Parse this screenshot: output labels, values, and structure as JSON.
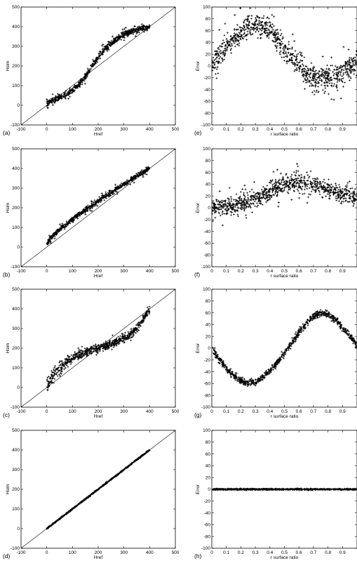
{
  "figure": {
    "panels": [
      {
        "letter": "(a)",
        "kind": "scatter_left",
        "xlabel": "Href",
        "ylabel": "Hsim"
      },
      {
        "letter": "(e)",
        "kind": "error_right",
        "xlabel": "r surface ratio",
        "ylabel": "Error"
      },
      {
        "letter": "(b)",
        "kind": "scatter_left",
        "xlabel": "Href",
        "ylabel": "Hsim"
      },
      {
        "letter": "(f)",
        "kind": "error_right",
        "xlabel": "r surface ratio",
        "ylabel": "Error"
      },
      {
        "letter": "(c)",
        "kind": "scatter_left",
        "xlabel": "Href",
        "ylabel": "Hsim"
      },
      {
        "letter": "(g)",
        "kind": "error_right",
        "xlabel": "r surface ratio",
        "ylabel": "Error"
      },
      {
        "letter": "(d)",
        "kind": "scatter_left",
        "xlabel": "Href",
        "ylabel": "Hsim"
      },
      {
        "letter": "(h)",
        "kind": "error_right",
        "xlabel": "r surface ratio",
        "ylabel": "Error"
      }
    ]
  },
  "chart_data": [
    {
      "type": "scatter",
      "panel": "(a)",
      "marker": "+",
      "color": "#000000",
      "xlabel": "Href",
      "ylabel": "Hsim",
      "xlim": [
        -100,
        500
      ],
      "ylim": [
        -100,
        500
      ],
      "xticks": [
        -100,
        0,
        100,
        200,
        300,
        400,
        500
      ],
      "yticks": [
        -100,
        0,
        100,
        200,
        300,
        400,
        500
      ],
      "reference_line": "y = x",
      "series": [
        {
          "x": [
            0,
            25,
            50,
            75,
            100,
            125,
            150,
            175,
            200,
            225,
            250,
            275,
            300,
            325,
            350,
            375,
            400
          ],
          "y": [
            10,
            25,
            38,
            55,
            75,
            105,
            145,
            195,
            245,
            285,
            315,
            340,
            360,
            375,
            385,
            392,
            400
          ],
          "spread": 14
        }
      ]
    },
    {
      "type": "scatter",
      "panel": "(e)",
      "marker": "+",
      "color": "#000000",
      "xlabel": "r surface ratio",
      "ylabel": "Error",
      "xlim": [
        0,
        1
      ],
      "ylim": [
        -100,
        100
      ],
      "xticks": [
        0,
        0.1,
        0.2,
        0.3,
        0.4,
        0.5,
        0.6,
        0.7,
        0.8,
        0.9
      ],
      "yticks": [
        -100,
        -80,
        -60,
        -40,
        -20,
        0,
        20,
        40,
        60,
        80,
        100
      ],
      "series": [
        {
          "x": [
            0,
            0.05,
            0.1,
            0.15,
            0.2,
            0.25,
            0.3,
            0.35,
            0.4,
            0.45,
            0.5,
            0.55,
            0.6,
            0.65,
            0.7,
            0.75,
            0.8,
            0.85,
            0.9,
            0.95,
            1.0
          ],
          "y": [
            0,
            18,
            33,
            46,
            57,
            65,
            68,
            66,
            58,
            46,
            30,
            14,
            0,
            -12,
            -20,
            -23,
            -22,
            -18,
            -10,
            -2,
            5
          ],
          "spread": 18
        }
      ]
    },
    {
      "type": "scatter",
      "panel": "(b)",
      "marker": "+",
      "color": "#000000",
      "xlabel": "Href",
      "ylabel": "Hsim",
      "xlim": [
        -100,
        500
      ],
      "ylim": [
        -100,
        500
      ],
      "xticks": [
        -100,
        0,
        100,
        200,
        300,
        400,
        500
      ],
      "yticks": [
        -100,
        0,
        100,
        200,
        300,
        400,
        500
      ],
      "reference_line": "y = x",
      "series": [
        {
          "x": [
            0,
            25,
            50,
            75,
            100,
            125,
            150,
            175,
            200,
            225,
            250,
            275,
            300,
            325,
            350,
            375,
            400
          ],
          "y": [
            20,
            60,
            90,
            115,
            140,
            165,
            190,
            210,
            235,
            255,
            275,
            300,
            320,
            340,
            360,
            380,
            400
          ],
          "spread": 12
        }
      ]
    },
    {
      "type": "scatter",
      "panel": "(f)",
      "marker": "+",
      "color": "#000000",
      "xlabel": "r surface ratio",
      "ylabel": "Error",
      "xlim": [
        0,
        1
      ],
      "ylim": [
        -100,
        100
      ],
      "xticks": [
        0,
        0.1,
        0.2,
        0.3,
        0.4,
        0.5,
        0.6,
        0.7,
        0.8,
        0.9
      ],
      "yticks": [
        -100,
        -80,
        -60,
        -40,
        -20,
        0,
        20,
        40,
        60,
        80,
        100
      ],
      "series": [
        {
          "x": [
            0,
            0.05,
            0.1,
            0.15,
            0.2,
            0.25,
            0.3,
            0.35,
            0.4,
            0.45,
            0.5,
            0.55,
            0.6,
            0.65,
            0.7,
            0.75,
            0.8,
            0.85,
            0.9,
            0.95,
            1.0
          ],
          "y": [
            0,
            0,
            1,
            3,
            6,
            10,
            15,
            21,
            28,
            34,
            39,
            42,
            43,
            42,
            39,
            35,
            31,
            27,
            24,
            21,
            18
          ],
          "spread": 14
        }
      ]
    },
    {
      "type": "scatter",
      "panel": "(c)",
      "marker": "+",
      "color": "#000000",
      "xlabel": "Href",
      "ylabel": "Hsim",
      "xlim": [
        -100,
        500
      ],
      "ylim": [
        -100,
        500
      ],
      "xticks": [
        -100,
        0,
        100,
        200,
        300,
        400,
        500
      ],
      "yticks": [
        -100,
        0,
        100,
        200,
        300,
        400,
        500
      ],
      "reference_line": "y = x",
      "series": [
        {
          "x": [
            0,
            25,
            50,
            75,
            100,
            125,
            150,
            175,
            200,
            225,
            250,
            275,
            300,
            325,
            350,
            375,
            400
          ],
          "y": [
            5,
            60,
            100,
            130,
            150,
            165,
            180,
            190,
            200,
            210,
            220,
            235,
            250,
            270,
            300,
            350,
            400
          ],
          "spread": 20
        }
      ]
    },
    {
      "type": "scatter",
      "panel": "(g)",
      "marker": "+",
      "color": "#000000",
      "xlabel": "r surface ratio",
      "ylabel": "Error",
      "xlim": [
        0,
        1
      ],
      "ylim": [
        -100,
        100
      ],
      "xticks": [
        0,
        0.1,
        0.2,
        0.3,
        0.4,
        0.5,
        0.6,
        0.7,
        0.8,
        0.9
      ],
      "yticks": [
        -100,
        -80,
        -60,
        -40,
        -20,
        0,
        20,
        40,
        60,
        80,
        100
      ],
      "series": [
        {
          "x": [
            0,
            0.05,
            0.1,
            0.15,
            0.2,
            0.25,
            0.3,
            0.35,
            0.4,
            0.45,
            0.5,
            0.55,
            0.6,
            0.65,
            0.7,
            0.75,
            0.8,
            0.85,
            0.9,
            0.95,
            1.0
          ],
          "y": [
            0,
            -18,
            -34,
            -46,
            -55,
            -59,
            -57,
            -50,
            -39,
            -25,
            -8,
            9,
            26,
            42,
            54,
            59,
            57,
            48,
            35,
            20,
            5
          ],
          "spread": 5
        }
      ]
    },
    {
      "type": "scatter",
      "panel": "(d)",
      "marker": "+",
      "color": "#000000",
      "xlabel": "Href",
      "ylabel": "Hsim",
      "xlim": [
        -100,
        500
      ],
      "ylim": [
        -100,
        500
      ],
      "xticks": [
        -100,
        0,
        100,
        200,
        300,
        400,
        500
      ],
      "yticks": [
        -100,
        0,
        100,
        200,
        300,
        400,
        500
      ],
      "reference_line": "y = x",
      "series": [
        {
          "x": [
            0,
            50,
            100,
            150,
            200,
            250,
            300,
            350,
            400
          ],
          "y": [
            0,
            50,
            100,
            150,
            200,
            250,
            300,
            350,
            400
          ],
          "spread": 3
        }
      ]
    },
    {
      "type": "scatter",
      "panel": "(h)",
      "marker": "+",
      "color": "#000000",
      "xlabel": "r surface ratio",
      "ylabel": "Error",
      "xlim": [
        0,
        1
      ],
      "ylim": [
        -100,
        100
      ],
      "xticks": [
        0,
        0.1,
        0.2,
        0.3,
        0.4,
        0.5,
        0.6,
        0.7,
        0.8,
        0.9
      ],
      "yticks": [
        -100,
        -80,
        -60,
        -40,
        -20,
        0,
        20,
        40,
        60,
        80,
        100
      ],
      "series": [
        {
          "x": [
            0,
            0.25,
            0.5,
            0.75,
            1.0
          ],
          "y": [
            0,
            0,
            0,
            0,
            0
          ],
          "spread": 1
        }
      ]
    }
  ]
}
